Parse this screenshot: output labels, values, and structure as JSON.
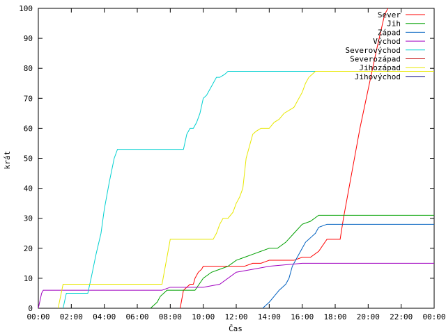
{
  "chart_data": {
    "type": "line",
    "title": "",
    "xlabel": "Čas",
    "ylabel": "krát",
    "xlim": [
      0,
      24
    ],
    "ylim": [
      0,
      100
    ],
    "grid": false,
    "legend_position": "top-right",
    "x_ticks": [
      {
        "value": 0,
        "label": "00:00"
      },
      {
        "value": 2,
        "label": "02:00"
      },
      {
        "value": 4,
        "label": "04:00"
      },
      {
        "value": 6,
        "label": "06:00"
      },
      {
        "value": 8,
        "label": "08:00"
      },
      {
        "value": 10,
        "label": "10:00"
      },
      {
        "value": 12,
        "label": "12:00"
      },
      {
        "value": 14,
        "label": "14:00"
      },
      {
        "value": 16,
        "label": "16:00"
      },
      {
        "value": 18,
        "label": "18:00"
      },
      {
        "value": 20,
        "label": "20:00"
      },
      {
        "value": 22,
        "label": "22:00"
      },
      {
        "value": 24,
        "label": "00:00"
      }
    ],
    "y_ticks": [
      {
        "value": 0,
        "label": "0"
      },
      {
        "value": 10,
        "label": "10"
      },
      {
        "value": 20,
        "label": "20"
      },
      {
        "value": 30,
        "label": "30"
      },
      {
        "value": 40,
        "label": "40"
      },
      {
        "value": 50,
        "label": "50"
      },
      {
        "value": 60,
        "label": "60"
      },
      {
        "value": 70,
        "label": "70"
      },
      {
        "value": 80,
        "label": "80"
      },
      {
        "value": 90,
        "label": "90"
      },
      {
        "value": 100,
        "label": "100"
      }
    ],
    "series": [
      {
        "name": "Sever",
        "color": "#ff0000",
        "x": [
          8.6,
          8.8,
          9.0,
          9.2,
          9.4,
          9.5,
          9.7,
          9.9,
          10.0,
          10.5,
          11.0,
          11.5,
          12.0,
          12.5,
          13.0,
          13.5,
          14.0,
          14.5,
          15.0,
          15.5,
          16.0,
          16.5,
          17.0,
          17.5,
          18.0,
          18.3,
          18.5,
          19.0,
          19.5,
          20.0,
          20.5,
          21.0,
          21.2
        ],
        "y": [
          0,
          6,
          7,
          8,
          8,
          10,
          12,
          13,
          14,
          14,
          14,
          14,
          14,
          14,
          15,
          15,
          16,
          16,
          16,
          16,
          17,
          17,
          19,
          23,
          23,
          23,
          30,
          45,
          60,
          73,
          86,
          98,
          100
        ]
      },
      {
        "name": "Jih",
        "color": "#00a000",
        "x": [
          6.8,
          7.2,
          7.4,
          7.6,
          7.8,
          8.0,
          9.0,
          9.5,
          10.0,
          10.5,
          11.0,
          11.5,
          12.0,
          12.5,
          13.0,
          13.5,
          14.0,
          14.5,
          15.0,
          15.5,
          16.0,
          16.5,
          17.0,
          17.5,
          18.0,
          20.0,
          22.0,
          24.0
        ],
        "y": [
          0,
          2,
          4,
          5,
          6,
          6,
          6,
          6,
          10,
          12,
          13,
          14,
          16,
          17,
          18,
          19,
          20,
          20,
          22,
          25,
          28,
          29,
          31,
          31,
          31,
          31,
          31,
          31
        ]
      },
      {
        "name": "Západ",
        "color": "#0060c0",
        "x": [
          13.6,
          14.0,
          14.3,
          14.6,
          14.8,
          15.0,
          15.2,
          15.4,
          15.6,
          15.8,
          16.0,
          16.2,
          16.4,
          16.6,
          16.8,
          17.0,
          17.5,
          18.0,
          20.0,
          22.0,
          24.0
        ],
        "y": [
          0,
          2,
          4,
          6,
          7,
          8,
          10,
          14,
          16,
          18,
          20,
          22,
          23,
          24,
          25,
          27,
          28,
          28,
          28,
          28,
          28
        ]
      },
      {
        "name": "Východ",
        "color": "#a000c0",
        "x": [
          0.0,
          0.2,
          0.3,
          0.5,
          1.0,
          2.0,
          4.0,
          6.0,
          7.5,
          8.0,
          9.0,
          10.0,
          11.0,
          12.0,
          13.0,
          14.0,
          16.0,
          18.0,
          20.0,
          22.0,
          24.0
        ],
        "y": [
          0,
          5,
          6,
          6,
          6,
          6,
          6,
          6,
          6,
          7,
          7,
          7,
          8,
          12,
          13,
          14,
          15,
          15,
          15,
          15,
          15
        ]
      },
      {
        "name": "Severovýchod",
        "color": "#00d0d0",
        "x": [
          1.5,
          1.7,
          2.0,
          2.5,
          3.0,
          3.2,
          3.5,
          3.8,
          4.0,
          4.3,
          4.6,
          4.8,
          5.0,
          6.0,
          7.0,
          8.0,
          8.8,
          9.0,
          9.2,
          9.4,
          9.6,
          9.8,
          10.0,
          10.2,
          10.4,
          10.6,
          10.8,
          11.0,
          11.3,
          11.5,
          12.0,
          14.0,
          16.0,
          18.0,
          20.0,
          22.0,
          24.0
        ],
        "y": [
          0,
          5,
          5,
          5,
          5,
          10,
          18,
          25,
          33,
          42,
          50,
          53,
          53,
          53,
          53,
          53,
          53,
          58,
          60,
          60,
          62,
          65,
          70,
          71,
          73,
          75,
          77,
          77,
          78,
          79,
          79,
          79,
          79,
          79,
          79,
          79,
          79
        ]
      },
      {
        "name": "Severozápad",
        "color": "#c00000",
        "x": [],
        "y": []
      },
      {
        "name": "Jihozápad",
        "color": "#e8e800",
        "x": [
          1.2,
          1.5,
          2.0,
          3.0,
          4.0,
          5.0,
          6.0,
          7.0,
          7.5,
          7.8,
          8.0,
          9.0,
          10.0,
          10.6,
          10.8,
          11.0,
          11.2,
          11.5,
          11.8,
          12.0,
          12.2,
          12.4,
          12.6,
          12.8,
          13.0,
          13.2,
          13.5,
          14.0,
          14.3,
          14.6,
          14.9,
          15.2,
          15.5,
          15.8,
          16.0,
          16.2,
          16.4,
          16.6,
          16.8,
          17.0,
          18.0,
          20.0,
          22.0,
          24.0
        ],
        "y": [
          0,
          8,
          8,
          8,
          8,
          8,
          8,
          8,
          8,
          17,
          23,
          23,
          23,
          23,
          25,
          28,
          30,
          30,
          32,
          35,
          37,
          40,
          50,
          54,
          58,
          59,
          60,
          60,
          62,
          63,
          65,
          66,
          67,
          70,
          72,
          75,
          77,
          78,
          79,
          79,
          79,
          79,
          79,
          79
        ]
      },
      {
        "name": "Jihovýchod",
        "color": "#000080",
        "x": [],
        "y": []
      }
    ]
  }
}
